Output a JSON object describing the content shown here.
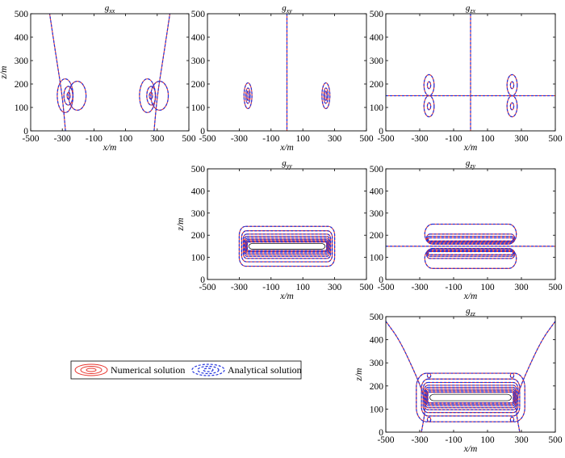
{
  "figure": {
    "legend": {
      "numerical": "Numerical solution",
      "analytical": "Analytical solution",
      "numerical_color": "#e8352e",
      "analytical_color": "#2233dd"
    }
  },
  "chart_data": [
    {
      "id": "gxx",
      "type": "contour",
      "title": "g",
      "title_sub": "xx",
      "xlabel": "x/m",
      "ylabel": "z/m",
      "xlim": [
        -500,
        500
      ],
      "ylim": [
        0,
        500
      ],
      "xticks": [
        -500,
        -300,
        -100,
        100,
        300,
        500
      ],
      "yticks": [
        0,
        100,
        200,
        300,
        400,
        500
      ],
      "grid": false,
      "features": {
        "zero_curves": [
          [
            [
              -280,
              0
            ],
            [
              -300,
              150
            ],
            [
              -340,
              320
            ],
            [
              -380,
              500
            ]
          ],
          [
            [
              280,
              0
            ],
            [
              300,
              150
            ],
            [
              340,
              320
            ],
            [
              380,
              500
            ]
          ]
        ],
        "ellipses": [
          {
            "cx": -260,
            "cy": 150,
            "rx": 10,
            "ry": 15
          },
          {
            "cx": -262,
            "cy": 150,
            "rx": 28,
            "ry": 40
          },
          {
            "cx": -205,
            "cy": 150,
            "rx": 55,
            "ry": 62
          },
          {
            "cx": -282,
            "cy": 150,
            "rx": 50,
            "ry": 72
          },
          {
            "cx": 260,
            "cy": 150,
            "rx": 10,
            "ry": 15
          },
          {
            "cx": 262,
            "cy": 150,
            "rx": 28,
            "ry": 40
          },
          {
            "cx": 315,
            "cy": 150,
            "rx": 55,
            "ry": 62
          },
          {
            "cx": 238,
            "cy": 150,
            "rx": 50,
            "ry": 72
          }
        ]
      }
    },
    {
      "id": "gxy",
      "type": "contour",
      "title": "g",
      "title_sub": "xy",
      "xlabel": "x/m",
      "ylabel": "",
      "xlim": [
        -500,
        500
      ],
      "ylim": [
        0,
        500
      ],
      "xticks": [
        -500,
        -300,
        -100,
        100,
        300,
        500
      ],
      "yticks": [
        0,
        100,
        200,
        300,
        400,
        500
      ],
      "grid": false,
      "features": {
        "vertical_lines": [
          0
        ],
        "ellipses": [
          {
            "cx": -245,
            "cy": 150,
            "rx": 6,
            "ry": 20
          },
          {
            "cx": -245,
            "cy": 150,
            "rx": 14,
            "ry": 33
          },
          {
            "cx": -245,
            "cy": 150,
            "rx": 25,
            "ry": 55
          },
          {
            "cx": 245,
            "cy": 150,
            "rx": 6,
            "ry": 20
          },
          {
            "cx": 245,
            "cy": 150,
            "rx": 14,
            "ry": 33
          },
          {
            "cx": 245,
            "cy": 150,
            "rx": 25,
            "ry": 55
          }
        ]
      }
    },
    {
      "id": "gzx",
      "type": "contour",
      "title": "g",
      "title_sub": "zx",
      "xlabel": "x/m",
      "ylabel": "",
      "xlim": [
        -500,
        500
      ],
      "ylim": [
        0,
        500
      ],
      "xticks": [
        -500,
        -300,
        -100,
        100,
        300,
        500
      ],
      "yticks": [
        0,
        100,
        200,
        300,
        400,
        500
      ],
      "grid": false,
      "features": {
        "vertical_lines": [
          0
        ],
        "horizontal_lines": [
          150
        ],
        "ellipses": [
          {
            "cx": -245,
            "cy": 195,
            "rx": 10,
            "ry": 15
          },
          {
            "cx": -245,
            "cy": 195,
            "rx": 30,
            "ry": 45
          },
          {
            "cx": -245,
            "cy": 105,
            "rx": 10,
            "ry": 15
          },
          {
            "cx": -245,
            "cy": 105,
            "rx": 30,
            "ry": 45
          },
          {
            "cx": 245,
            "cy": 195,
            "rx": 10,
            "ry": 15
          },
          {
            "cx": 245,
            "cy": 195,
            "rx": 30,
            "ry": 45
          },
          {
            "cx": 245,
            "cy": 105,
            "rx": 10,
            "ry": 15
          },
          {
            "cx": 245,
            "cy": 105,
            "rx": 30,
            "ry": 45
          }
        ]
      }
    },
    {
      "id": "gyy",
      "type": "contour",
      "title": "g",
      "title_sub": "yy",
      "xlabel": "x/m",
      "ylabel": "z/m",
      "xlim": [
        -500,
        500
      ],
      "ylim": [
        0,
        500
      ],
      "xticks": [
        -500,
        -300,
        -100,
        100,
        300,
        500
      ],
      "yticks": [
        0,
        100,
        200,
        300,
        400,
        500
      ],
      "grid": false,
      "features": {
        "rounded_rects": [
          {
            "x0": -300,
            "x1": 300,
            "y0": 60,
            "y1": 240,
            "r": 40
          },
          {
            "x0": -285,
            "x1": 285,
            "y0": 80,
            "y1": 220,
            "r": 30
          },
          {
            "x0": -275,
            "x1": 275,
            "y0": 95,
            "y1": 205,
            "r": 22
          },
          {
            "x0": -268,
            "x1": 268,
            "y0": 105,
            "y1": 195,
            "r": 16
          },
          {
            "x0": -262,
            "x1": 262,
            "y0": 113,
            "y1": 187,
            "r": 12
          },
          {
            "x0": -257,
            "x1": 257,
            "y0": 120,
            "y1": 180,
            "r": 9
          },
          {
            "x0": -253,
            "x1": 253,
            "y0": 126,
            "y1": 174,
            "r": 7
          },
          {
            "x0": -249,
            "x1": 249,
            "y0": 131,
            "y1": 169,
            "r": 6
          }
        ],
        "white_core": {
          "x0": -240,
          "x1": 240,
          "y0": 137,
          "y1": 163
        }
      }
    },
    {
      "id": "gzy",
      "type": "contour",
      "title": "g",
      "title_sub": "zy",
      "xlabel": "x/m",
      "ylabel": "",
      "xlim": [
        -500,
        500
      ],
      "ylim": [
        0,
        500
      ],
      "xticks": [
        -500,
        -300,
        -100,
        100,
        300,
        500
      ],
      "yticks": [
        0,
        100,
        200,
        300,
        400,
        500
      ],
      "grid": false,
      "features": {
        "horizontal_lines": [
          150
        ],
        "rounded_rects": [
          {
            "x0": -270,
            "x1": 270,
            "y0": 160,
            "y1": 250,
            "r": 45
          },
          {
            "x0": -260,
            "x1": 260,
            "y0": 165,
            "y1": 205,
            "r": 20
          },
          {
            "x0": -255,
            "x1": 255,
            "y0": 170,
            "y1": 195,
            "r": 12
          },
          {
            "x0": -250,
            "x1": 250,
            "y0": 174,
            "y1": 188,
            "r": 7
          },
          {
            "x0": -270,
            "x1": 270,
            "y0": 50,
            "y1": 140,
            "r": 45
          },
          {
            "x0": -260,
            "x1": 260,
            "y0": 95,
            "y1": 135,
            "r": 20
          },
          {
            "x0": -255,
            "x1": 255,
            "y0": 105,
            "y1": 130,
            "r": 12
          },
          {
            "x0": -250,
            "x1": 250,
            "y0": 112,
            "y1": 126,
            "r": 7
          }
        ]
      }
    },
    {
      "id": "gzz",
      "type": "contour",
      "title": "g",
      "title_sub": "zz",
      "xlabel": "x/m",
      "ylabel": "z/m",
      "xlim": [
        -500,
        500
      ],
      "ylim": [
        0,
        500
      ],
      "xticks": [
        -500,
        -300,
        -100,
        100,
        300,
        500
      ],
      "yticks": [
        0,
        100,
        200,
        300,
        400,
        500
      ],
      "grid": false,
      "features": {
        "zero_curves": [
          [
            [
              -500,
              480
            ],
            [
              -420,
              400
            ],
            [
              -330,
              260
            ],
            [
              -280,
              170
            ],
            [
              -265,
              100
            ],
            [
              -290,
              0
            ]
          ],
          [
            [
              500,
              480
            ],
            [
              420,
              400
            ],
            [
              330,
              260
            ],
            [
              280,
              170
            ],
            [
              265,
              100
            ],
            [
              290,
              0
            ]
          ]
        ],
        "small_loops": [
          {
            "cx": -245,
            "cy": 245,
            "rx": 10,
            "ry": 10
          },
          {
            "cx": 245,
            "cy": 245,
            "rx": 10,
            "ry": 10
          },
          {
            "cx": -245,
            "cy": 55,
            "rx": 10,
            "ry": 10
          },
          {
            "cx": 245,
            "cy": 55,
            "rx": 10,
            "ry": 10
          }
        ],
        "rounded_rects": [
          {
            "x0": -320,
            "x1": 320,
            "y0": 45,
            "y1": 255,
            "r": 60
          },
          {
            "x0": -290,
            "x1": 290,
            "y0": 70,
            "y1": 230,
            "r": 40
          },
          {
            "x0": -280,
            "x1": 280,
            "y0": 85,
            "y1": 215,
            "r": 28
          },
          {
            "x0": -272,
            "x1": 272,
            "y0": 97,
            "y1": 203,
            "r": 20
          },
          {
            "x0": -266,
            "x1": 266,
            "y0": 106,
            "y1": 194,
            "r": 15
          },
          {
            "x0": -261,
            "x1": 261,
            "y0": 114,
            "y1": 186,
            "r": 11
          },
          {
            "x0": -256,
            "x1": 256,
            "y0": 121,
            "y1": 179,
            "r": 8
          },
          {
            "x0": -252,
            "x1": 252,
            "y0": 127,
            "y1": 173,
            "r": 6
          }
        ],
        "white_core": {
          "x0": -240,
          "x1": 240,
          "y0": 136,
          "y1": 164
        }
      }
    }
  ]
}
